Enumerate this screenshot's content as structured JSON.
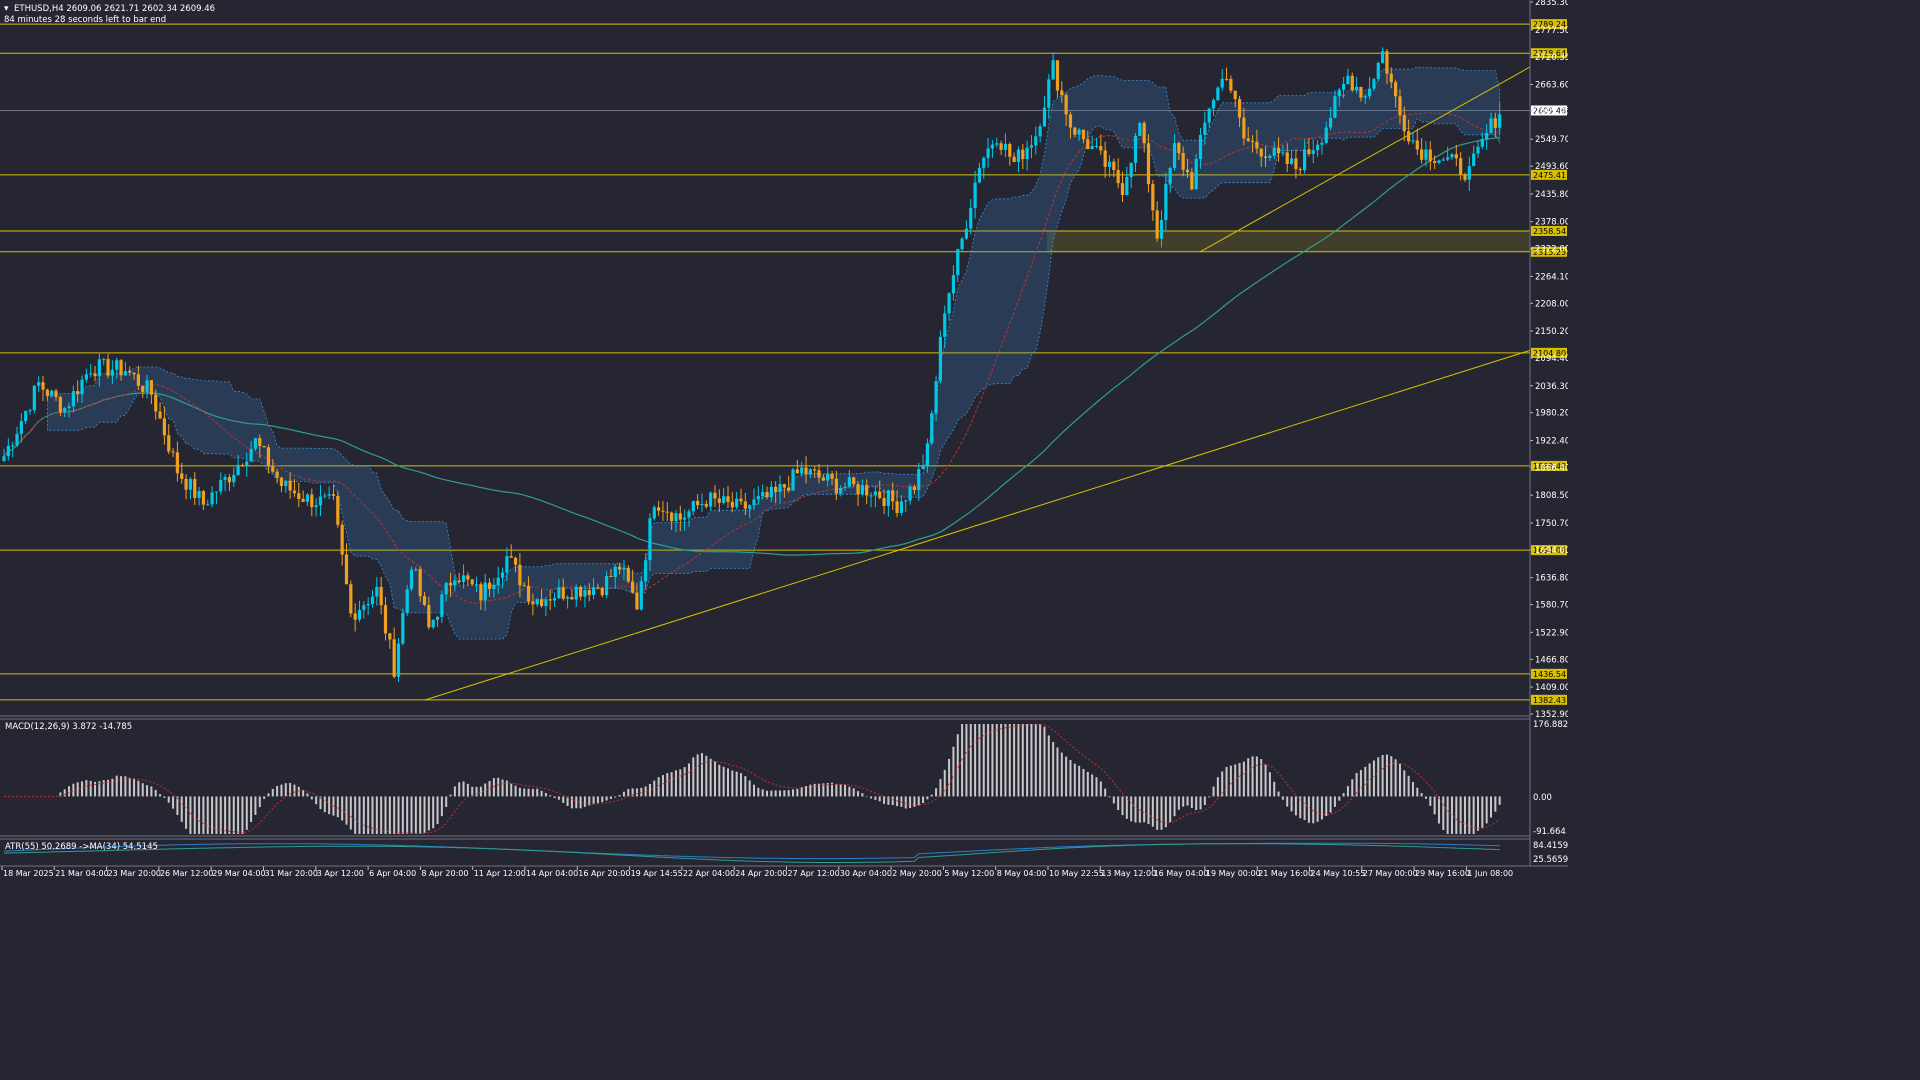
{
  "header": {
    "symbol_line": "ETHUSD,H4  2609.06 2621.71 2602.34 2609.46",
    "timer": "84 minutes 28 seconds left to bar end",
    "triangle": "▾"
  },
  "colors": {
    "bg": "#262633",
    "bull": "#00c8e6",
    "bear": "#f0a020",
    "level": "#d8c000",
    "grid": "#3a3a4a",
    "ma_slow": "#2f9e8a",
    "ma_red": "#c03030",
    "cloud": "#3b8fd0",
    "macd_hist": "#c8c8c8",
    "atr_blue": "#2a7fd0",
    "atr_green": "#2f9e8a"
  },
  "chart_data": {
    "type": "candlestick",
    "symbol": "ETHUSD",
    "timeframe": "H4",
    "ohlc_last": {
      "open": 2609.06,
      "high": 2621.71,
      "low": 2602.34,
      "close": 2609.46
    },
    "price_ticks": [
      "2835.30",
      "2777.50",
      "2720.35",
      "2663.60",
      "2609.46",
      "2549.70",
      "2493.60",
      "2435.80",
      "2378.00",
      "2322.00",
      "2264.10",
      "2208.00",
      "2150.20",
      "2094.40",
      "2036.30",
      "1980.20",
      "1922.40",
      "1866.40",
      "1808.50",
      "1750.70",
      "1694.60",
      "1636.80",
      "1580.70",
      "1522.90",
      "1466.80",
      "1409.00",
      "1352.90"
    ],
    "price_range": [
      1352.9,
      2835.3
    ],
    "levels": [
      {
        "label": "2789.24",
        "value": 2789.24
      },
      {
        "label": "2728.64",
        "value": 2728.64
      },
      {
        "label": "2475.41",
        "value": 2475.41
      },
      {
        "label": "2358.54",
        "value": 2358.54
      },
      {
        "label": "2315.25",
        "value": 2315.25
      },
      {
        "label": "2104.80",
        "value": 2104.8
      },
      {
        "label": "1869.40",
        "value": 1869.4
      },
      {
        "label": "1694.09",
        "value": 1694.09
      },
      {
        "label": "1436.54",
        "value": 1436.54
      },
      {
        "label": "1382.43",
        "value": 1382.43
      }
    ],
    "current_price": {
      "label": "2609.46",
      "value": 2609.46
    },
    "time_labels": [
      "18 Mar 2025",
      "21 Mar 04:00",
      "23 Mar 20:00",
      "26 Mar 12:00",
      "29 Mar 04:00",
      "31 Mar 20:00",
      "3 Apr 12:00",
      "6 Apr 04:00",
      "8 Apr 20:00",
      "11 Apr 12:00",
      "14 Apr 04:00",
      "16 Apr 20:00",
      "19 Apr 14:55",
      "22 Apr 04:00",
      "24 Apr 20:00",
      "27 Apr 12:00",
      "30 Apr 04:00",
      "2 May 20:00",
      "5 May 12:00",
      "8 May 04:00",
      "10 May 22:55",
      "13 May 12:00",
      "16 May 04:00",
      "19 May 00:00",
      "21 May 16:00",
      "24 May 10:55",
      "27 May 00:00",
      "29 May 16:00",
      "1 Jun 08:00"
    ],
    "anchors": [
      {
        "i": 0,
        "p": 1890
      },
      {
        "i": 8,
        "p": 2040
      },
      {
        "i": 14,
        "p": 1990
      },
      {
        "i": 20,
        "p": 2075
      },
      {
        "i": 28,
        "p": 2070
      },
      {
        "i": 34,
        "p": 2020
      },
      {
        "i": 40,
        "p": 1860
      },
      {
        "i": 46,
        "p": 1790
      },
      {
        "i": 52,
        "p": 1850
      },
      {
        "i": 58,
        "p": 1920
      },
      {
        "i": 64,
        "p": 1830
      },
      {
        "i": 70,
        "p": 1800
      },
      {
        "i": 76,
        "p": 1790
      },
      {
        "i": 80,
        "p": 1560
      },
      {
        "i": 86,
        "p": 1610
      },
      {
        "i": 90,
        "p": 1450
      },
      {
        "i": 94,
        "p": 1670
      },
      {
        "i": 98,
        "p": 1530
      },
      {
        "i": 104,
        "p": 1650
      },
      {
        "i": 110,
        "p": 1600
      },
      {
        "i": 116,
        "p": 1680
      },
      {
        "i": 122,
        "p": 1590
      },
      {
        "i": 130,
        "p": 1610
      },
      {
        "i": 138,
        "p": 1620
      },
      {
        "i": 142,
        "p": 1660
      },
      {
        "i": 146,
        "p": 1580
      },
      {
        "i": 150,
        "p": 1800
      },
      {
        "i": 156,
        "p": 1760
      },
      {
        "i": 162,
        "p": 1800
      },
      {
        "i": 170,
        "p": 1780
      },
      {
        "i": 178,
        "p": 1810
      },
      {
        "i": 184,
        "p": 1860
      },
      {
        "i": 192,
        "p": 1830
      },
      {
        "i": 200,
        "p": 1820
      },
      {
        "i": 206,
        "p": 1790
      },
      {
        "i": 210,
        "p": 1830
      },
      {
        "i": 213,
        "p": 1900
      },
      {
        "i": 217,
        "p": 2200
      },
      {
        "i": 221,
        "p": 2340
      },
      {
        "i": 225,
        "p": 2500
      },
      {
        "i": 229,
        "p": 2560
      },
      {
        "i": 233,
        "p": 2500
      },
      {
        "i": 238,
        "p": 2560
      },
      {
        "i": 242,
        "p": 2700
      },
      {
        "i": 246,
        "p": 2580
      },
      {
        "i": 252,
        "p": 2520
      },
      {
        "i": 258,
        "p": 2450
      },
      {
        "i": 262,
        "p": 2580
      },
      {
        "i": 266,
        "p": 2350
      },
      {
        "i": 270,
        "p": 2530
      },
      {
        "i": 274,
        "p": 2460
      },
      {
        "i": 278,
        "p": 2620
      },
      {
        "i": 282,
        "p": 2690
      },
      {
        "i": 286,
        "p": 2550
      },
      {
        "i": 292,
        "p": 2520
      },
      {
        "i": 298,
        "p": 2490
      },
      {
        "i": 304,
        "p": 2560
      },
      {
        "i": 310,
        "p": 2680
      },
      {
        "i": 314,
        "p": 2640
      },
      {
        "i": 318,
        "p": 2730
      },
      {
        "i": 322,
        "p": 2600
      },
      {
        "i": 326,
        "p": 2530
      },
      {
        "i": 332,
        "p": 2510
      },
      {
        "i": 338,
        "p": 2480
      },
      {
        "i": 342,
        "p": 2560
      },
      {
        "i": 345,
        "p": 2609
      }
    ],
    "candle_count": 346
  },
  "macd": {
    "label": "MACD(12,26,9) 3.872 -14.785",
    "ticks": [
      "176.882",
      "0.00",
      "-91.664"
    ],
    "range": [
      -91.664,
      176.882
    ]
  },
  "atr": {
    "label": "ATR(55) 50.2689  ->MA(34) 54.5145",
    "ticks": [
      "84.4159",
      "25.5659"
    ],
    "range": [
      25.5659,
      84.4159
    ]
  }
}
